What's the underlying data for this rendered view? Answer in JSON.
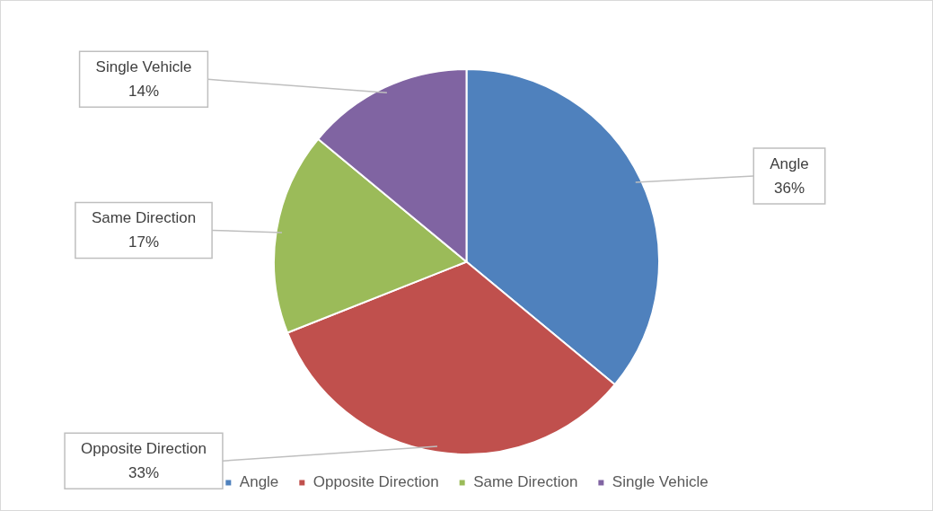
{
  "chart_data": {
    "type": "pie",
    "categories": [
      "Angle",
      "Opposite Direction",
      "Same Direction",
      "Single Vehicle"
    ],
    "values": [
      36,
      33,
      17,
      14
    ],
    "colors": [
      "#4f81bd",
      "#c0504d",
      "#9bbb59",
      "#8064a2"
    ],
    "value_labels": [
      "36%",
      "33%",
      "17%",
      "14%"
    ],
    "legend": "bottom"
  }
}
